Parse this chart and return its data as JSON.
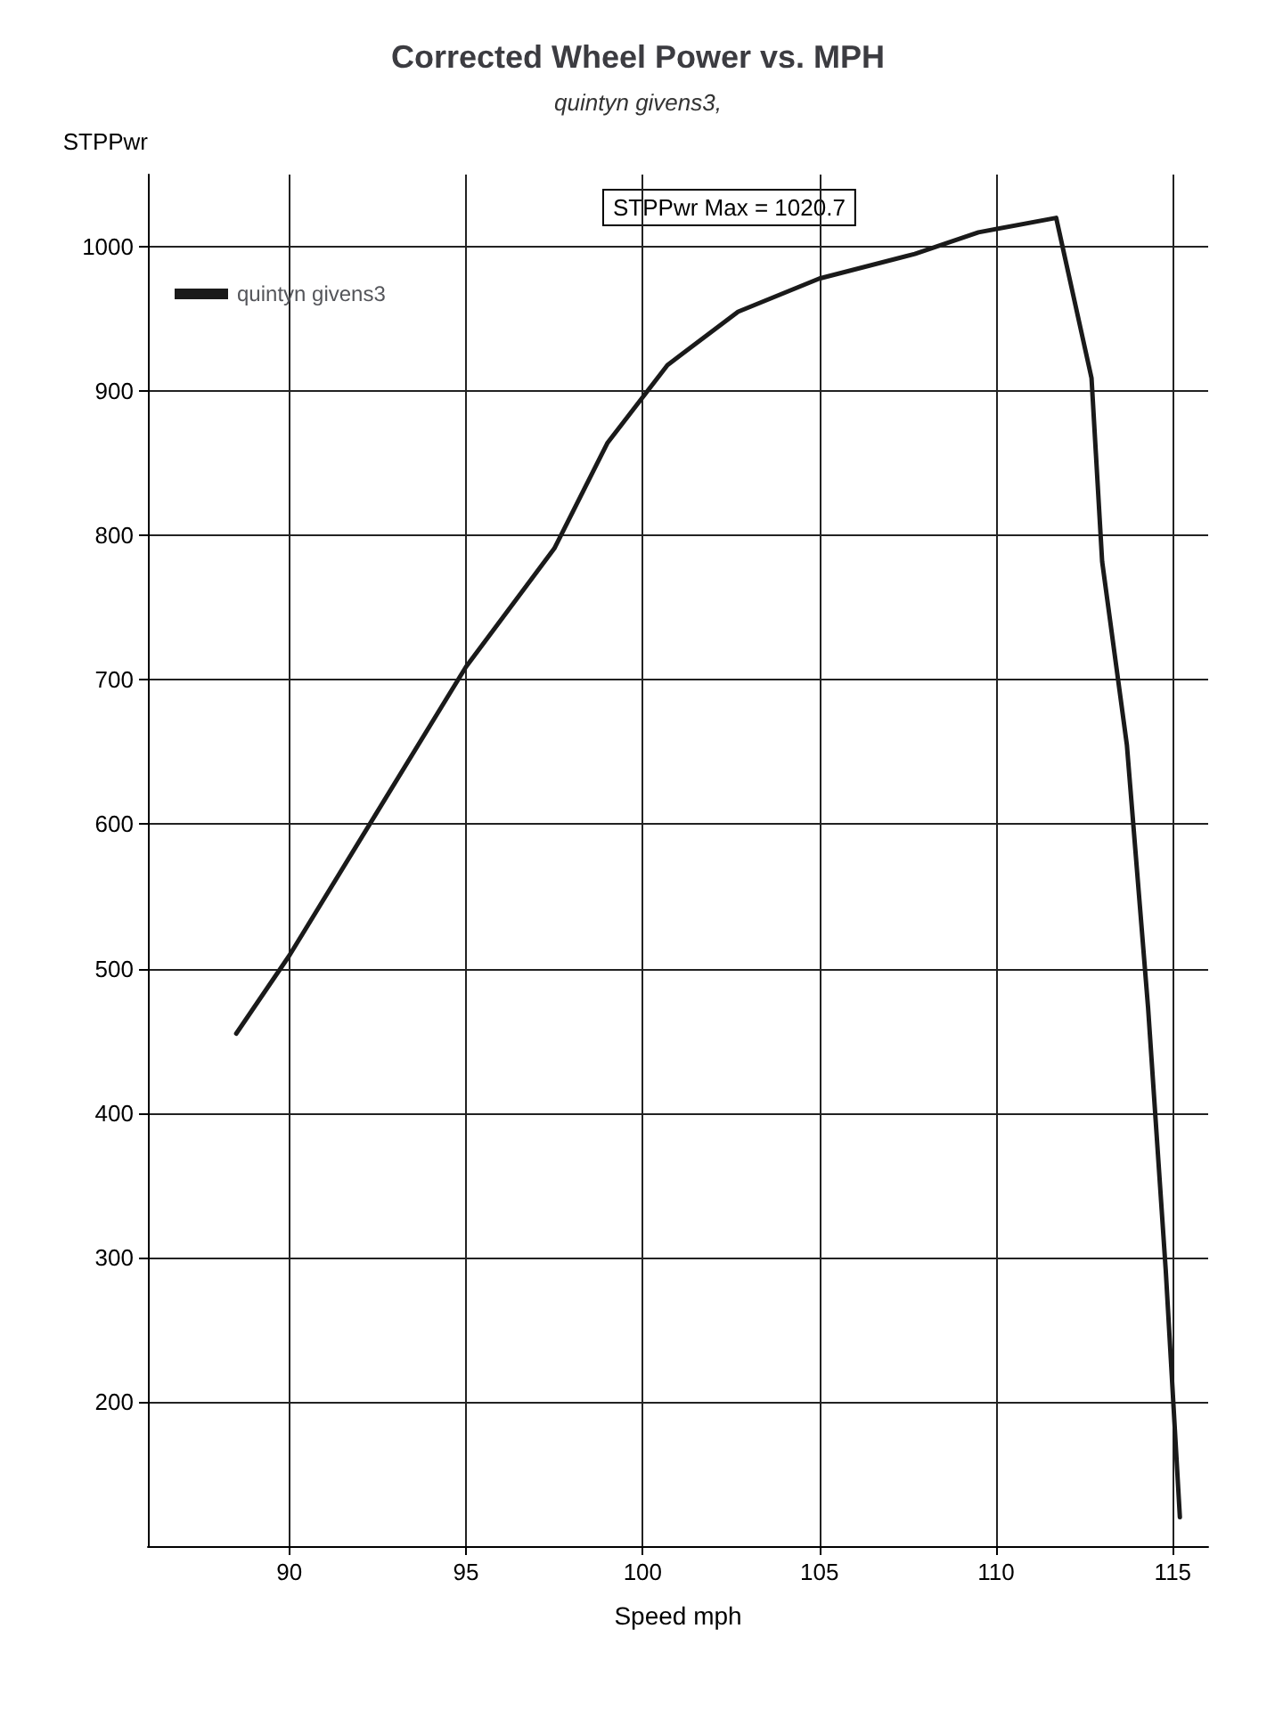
{
  "chart_data": {
    "type": "line",
    "title": "Corrected Wheel Power vs. MPH",
    "subtitle": "quintyn givens3,",
    "xlabel": "Speed mph",
    "ylabel": "STPPwr",
    "annotations": [
      "STPPwr Max = 1020.7"
    ],
    "series": [
      {
        "name": "quintyn givens3",
        "color": "#1a1a1a",
        "x": [
          88.5,
          90,
          92.5,
          95,
          97.5,
          99,
          100.7,
          102.7,
          105,
          107.7,
          109.5,
          111.7,
          112.7,
          113,
          113.7,
          114.3,
          114.8,
          115.2
        ],
        "values": [
          455,
          509,
          609,
          709,
          791,
          864,
          918,
          955,
          978,
          995,
          1010,
          1020,
          909,
          782,
          655,
          473,
          291,
          120
        ]
      }
    ],
    "xlim": [
      86,
      116
    ],
    "xticks": [
      90,
      95,
      100,
      105,
      110,
      115
    ],
    "ylim": [
      100,
      1050
    ],
    "yticks": [
      200,
      300,
      400,
      500,
      600,
      700,
      800,
      900,
      1000
    ],
    "grid": true,
    "legend": "top left",
    "marker": "none",
    "line_style": "solid"
  }
}
